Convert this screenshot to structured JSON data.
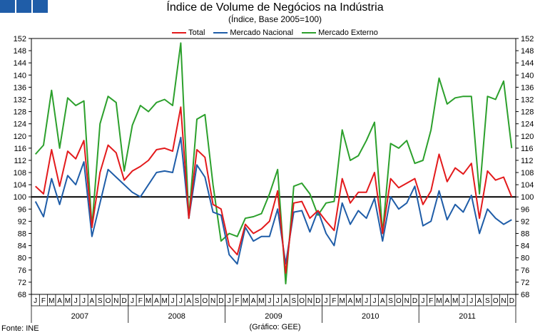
{
  "title": "Índice de Volume de Negócios na Indústria",
  "subtitle": "(Índice, Base 2005=100)",
  "source": "Fonte: INE",
  "credit": "(Gráfico: GEE)",
  "chart_data": {
    "type": "line",
    "ylim": [
      68,
      152
    ],
    "yticks": [
      68,
      72,
      76,
      80,
      84,
      88,
      92,
      96,
      100,
      104,
      108,
      112,
      116,
      120,
      124,
      128,
      132,
      136,
      140,
      144,
      148,
      152
    ],
    "reference_line": 100,
    "months": [
      "J",
      "F",
      "M",
      "A",
      "M",
      "J",
      "J",
      "A",
      "S",
      "O",
      "N",
      "D"
    ],
    "years": [
      "2007",
      "2008",
      "2009",
      "2010",
      "2011"
    ],
    "series": [
      {
        "name": "Total",
        "color": "#e31a1c",
        "values": [
          103.5,
          101,
          115.5,
          103.5,
          115,
          112.5,
          118.5,
          90,
          108,
          117,
          114.5,
          105.5,
          108.5,
          110,
          112,
          115.5,
          116,
          115,
          129.5,
          93,
          115.5,
          113,
          97.5,
          96,
          84,
          81,
          91,
          88,
          89.5,
          92,
          102,
          75,
          98,
          98.5,
          93,
          95.5,
          92,
          89,
          106,
          98,
          101.5,
          101.5,
          108,
          88,
          106,
          103,
          104.5,
          106,
          97.5,
          102,
          114,
          105,
          109.5,
          107.5,
          111,
          93,
          108.5,
          105.5,
          106.5,
          100
        ]
      },
      {
        "name": "Mercado Nacional",
        "color": "#1f5da8",
        "values": [
          98.5,
          93.5,
          106,
          97.5,
          107,
          104,
          111.5,
          87,
          98,
          109,
          106.5,
          104,
          101.5,
          100,
          104,
          108,
          108.5,
          108,
          119.5,
          93,
          110.5,
          106.5,
          95,
          94,
          81,
          78,
          90,
          85.5,
          87,
          87,
          96,
          78,
          95,
          95.5,
          88.5,
          95.5,
          88,
          84,
          98,
          91,
          95.5,
          93,
          99.5,
          85.5,
          100,
          96,
          98,
          103.5,
          90.5,
          92,
          102,
          92.5,
          97.5,
          95,
          100.5,
          88,
          96,
          93,
          91,
          92.5
        ]
      },
      {
        "name": "Mercado Externo",
        "color": "#2ca02c",
        "values": [
          114,
          117,
          135,
          116,
          132.5,
          130,
          131.5,
          90,
          124,
          133,
          131,
          108.5,
          123.5,
          130,
          128,
          131,
          132,
          130,
          150.5,
          93,
          125.5,
          127,
          104,
          85.5,
          88,
          87,
          93,
          93.5,
          94.5,
          101,
          109,
          71.5,
          103.5,
          104.5,
          101,
          94,
          98,
          98.5,
          122,
          112,
          113.5,
          118.5,
          124.5,
          88,
          117.5,
          116,
          118.5,
          111,
          112,
          122,
          139,
          130.5,
          132.5,
          133,
          133,
          101,
          133,
          132,
          138,
          116
        ]
      }
    ]
  }
}
